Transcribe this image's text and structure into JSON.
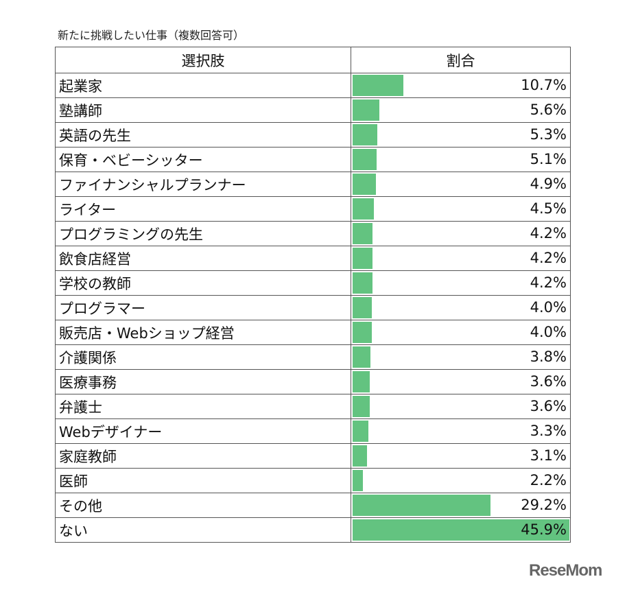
{
  "chart_data": {
    "type": "bar",
    "title": "新たに挑戦したい仕事（複数回答可）",
    "column_headers": [
      "選択肢",
      "割合"
    ],
    "categories": [
      "起業家",
      "塾講師",
      "英語の先生",
      "保育・ベビーシッター",
      "ファイナンシャルプランナー",
      "ライター",
      "プログラミングの先生",
      "飲食店経営",
      "学校の教師",
      "プログラマー",
      "販売店・Webショップ経営",
      "介護関係",
      "医療事務",
      "弁護士",
      "Webデザイナー",
      "家庭教師",
      "医師",
      "その他",
      "ない"
    ],
    "values": [
      10.7,
      5.6,
      5.3,
      5.1,
      4.9,
      4.5,
      4.2,
      4.2,
      4.2,
      4.0,
      4.0,
      3.8,
      3.6,
      3.6,
      3.3,
      3.1,
      2.2,
      29.2,
      45.9
    ],
    "value_labels": [
      "10.7%",
      "5.6%",
      "5.3%",
      "5.1%",
      "4.9%",
      "4.5%",
      "4.2%",
      "4.2%",
      "4.2%",
      "4.0%",
      "4.0%",
      "3.8%",
      "3.6%",
      "3.6%",
      "3.3%",
      "3.1%",
      "2.2%",
      "29.2%",
      "45.9%"
    ],
    "unit": "%",
    "xlim": [
      0,
      45.9
    ],
    "bar_color": "#63c380"
  },
  "watermark": "ReseMom"
}
